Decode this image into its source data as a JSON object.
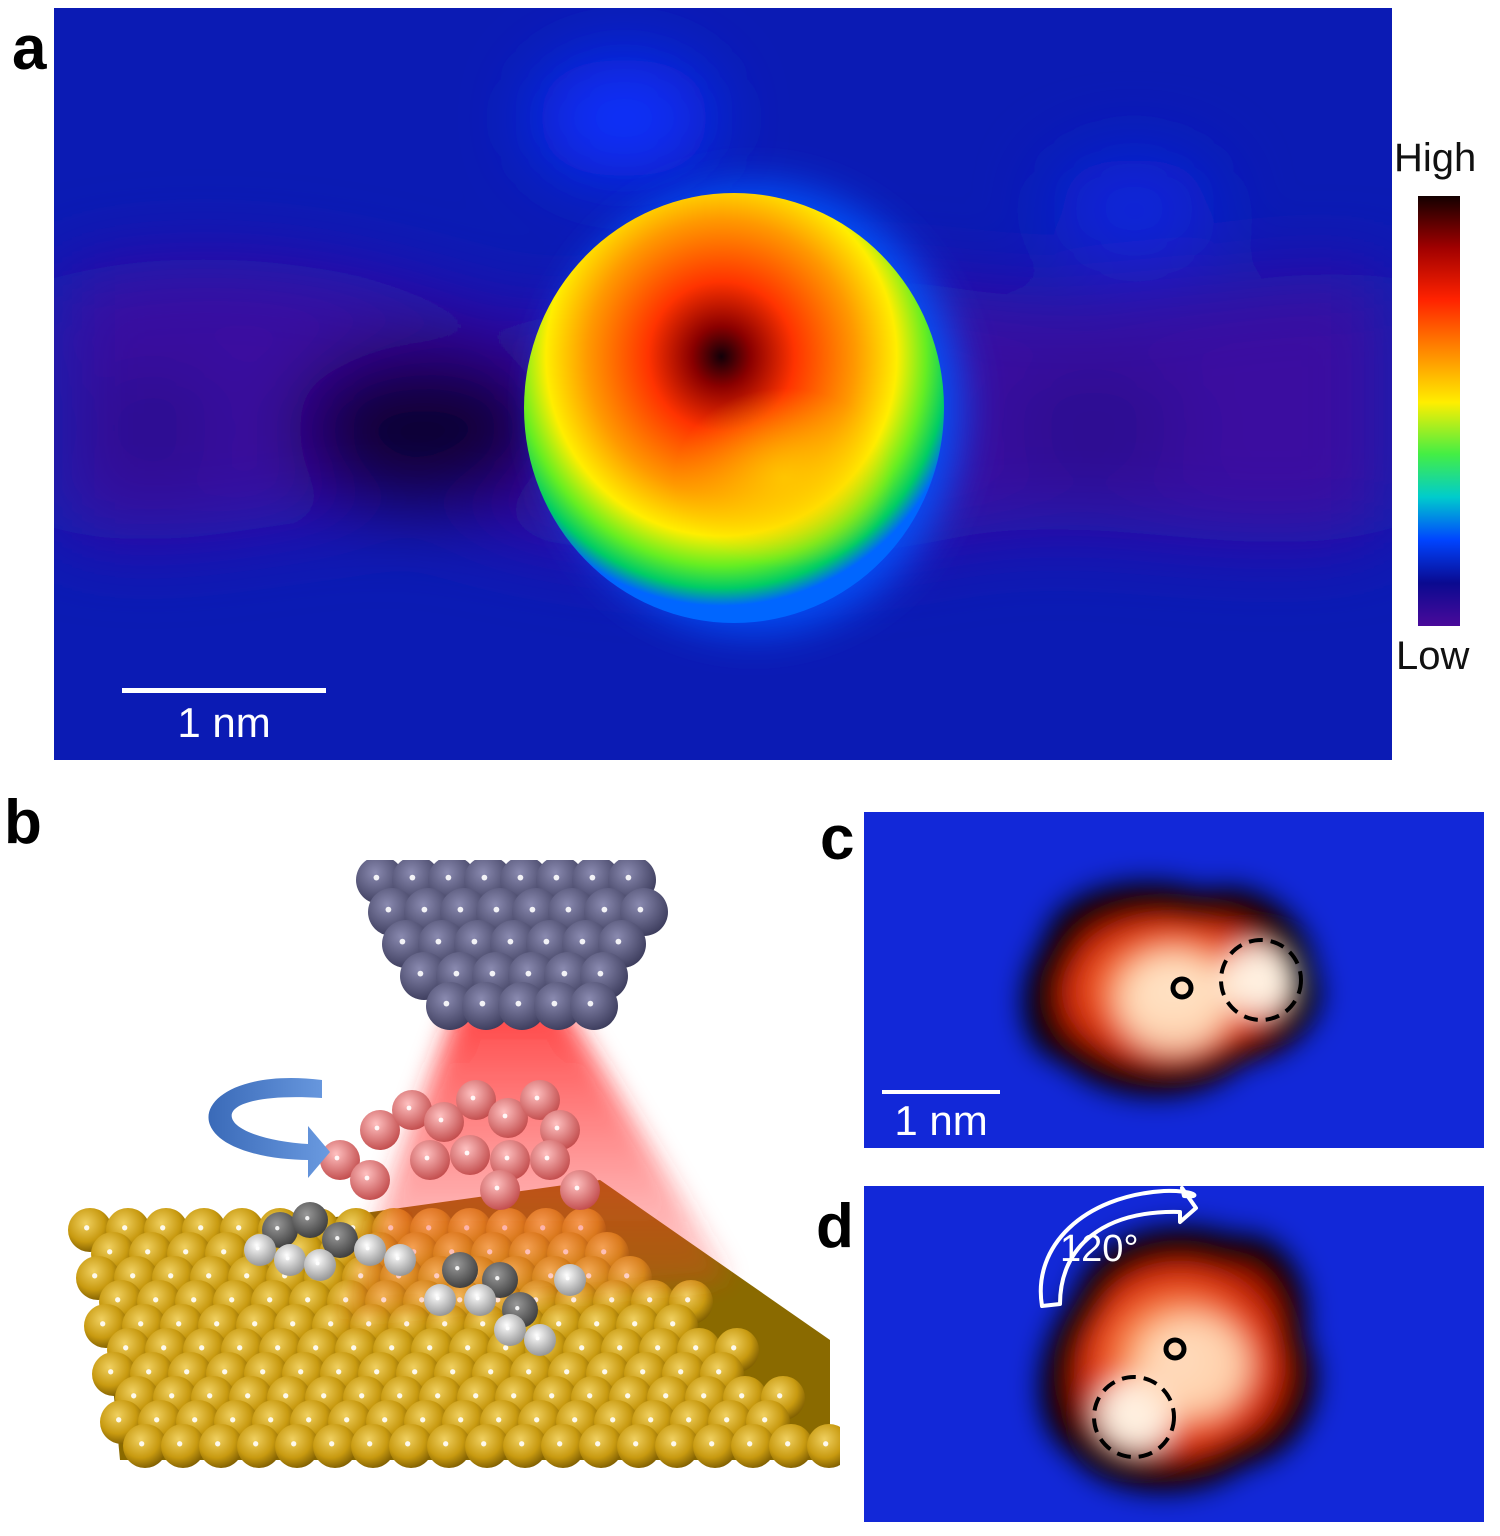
{
  "panels": {
    "a": {
      "label": "a",
      "scale_bar": "1 nm",
      "colorbar": {
        "high": "High",
        "low": "Low"
      }
    },
    "b": {
      "label": "b"
    },
    "c": {
      "label": "c",
      "scale_bar": "1 nm"
    },
    "d": {
      "label": "d",
      "rotation": "120°"
    }
  }
}
